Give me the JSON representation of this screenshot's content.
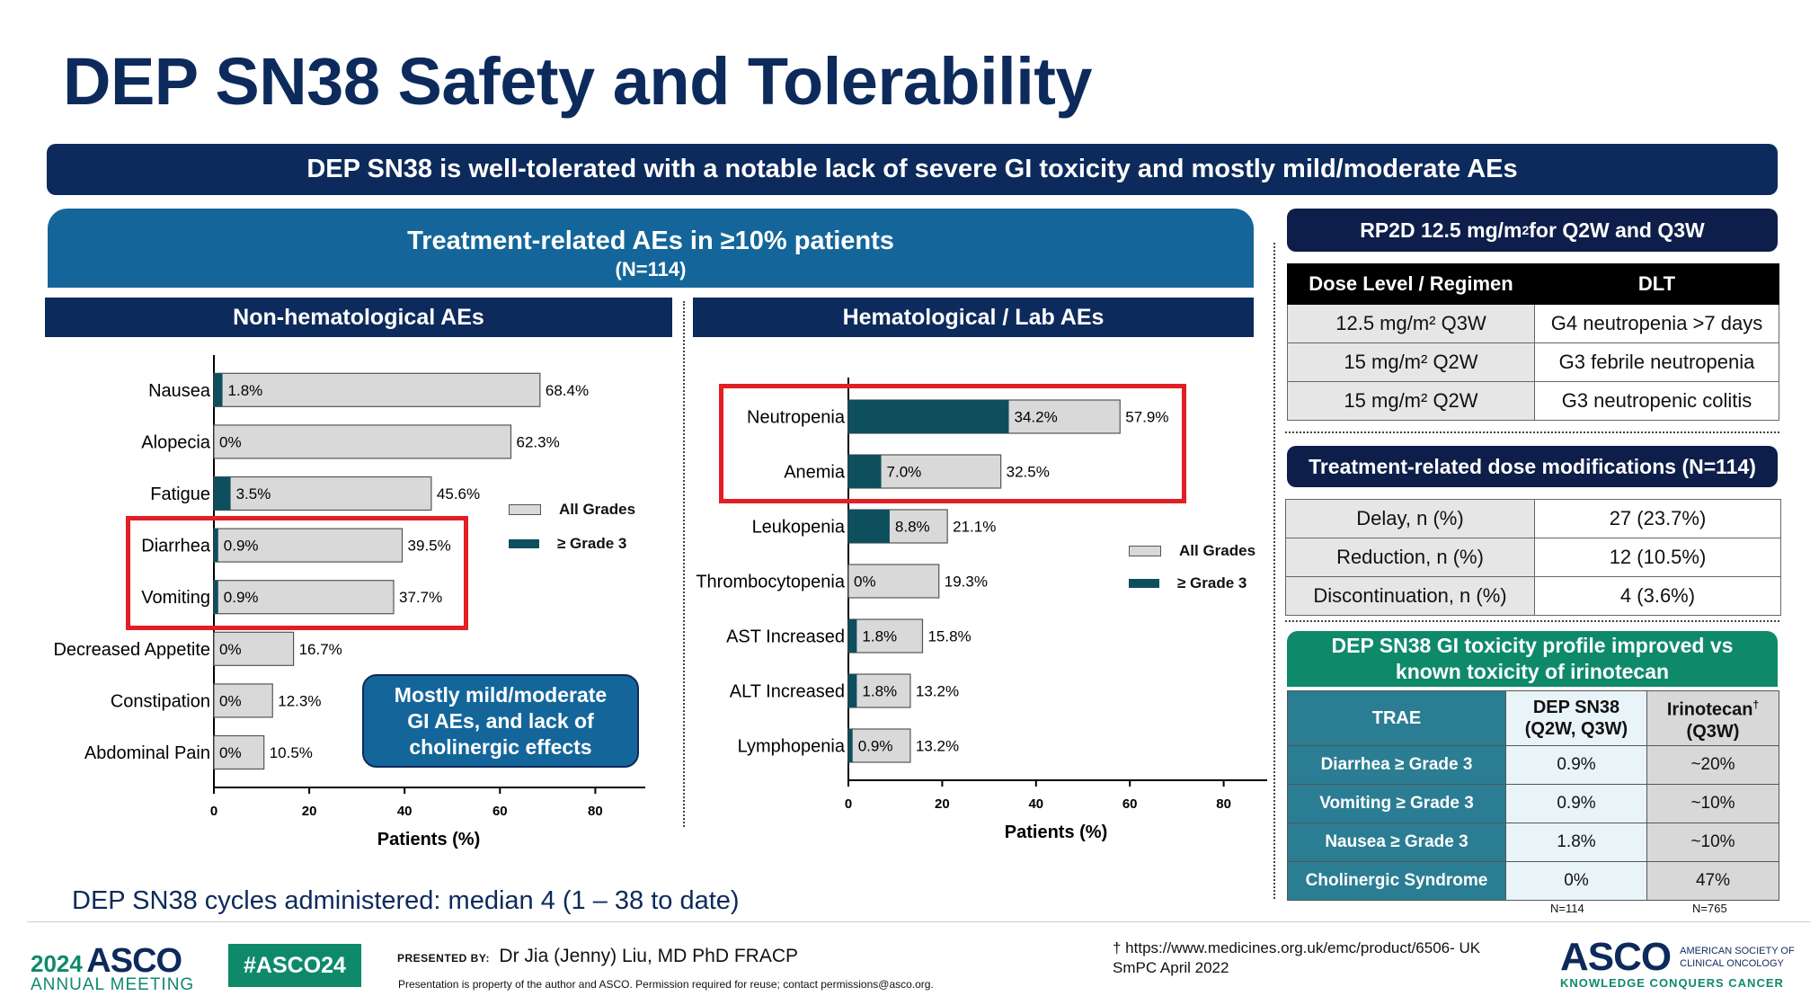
{
  "title": "DEP SN38 Safety and Tolerability",
  "banner": "DEP SN38 is well-tolerated with a notable lack of severe GI toxicity and mostly mild/moderate AEs",
  "trae_header": {
    "line1": "Treatment-related AEs in ≥10% patients",
    "line2": "(N=114)"
  },
  "legend": {
    "all": "All Grades",
    "g3": "≥ Grade 3"
  },
  "colors": {
    "navy": "#0d2a5c",
    "all_grades": "#d9d9d9",
    "grade3": "#0e4f5e",
    "red": "#e31e24"
  },
  "callout": [
    "Mostly mild/moderate",
    "GI AEs, and lack of",
    "cholinergic effects"
  ],
  "chart_data": [
    {
      "type": "bar",
      "orientation": "horizontal",
      "title": "Non-hematological AEs",
      "xlabel": "Patients (%)",
      "xlim": [
        0,
        90
      ],
      "xticks": [
        0,
        20,
        40,
        60,
        80
      ],
      "categories": [
        "Nausea",
        "Alopecia",
        "Fatigue",
        "Diarrhea",
        "Vomiting",
        "Decreased Appetite",
        "Constipation",
        "Abdominal Pain"
      ],
      "series": [
        {
          "name": "All Grades",
          "values": [
            68.4,
            62.3,
            45.6,
            39.5,
            37.7,
            16.7,
            12.3,
            10.5
          ],
          "labels": [
            "68.4%",
            "62.3%",
            "45.6%",
            "39.5%",
            "37.7%",
            "16.7%",
            "12.3%",
            "10.5%"
          ]
        },
        {
          "name": "≥ Grade 3",
          "values": [
            1.8,
            0,
            3.5,
            0.9,
            0.9,
            0,
            0,
            0
          ],
          "labels": [
            "1.8%",
            "0%",
            "3.5%",
            "0.9%",
            "0.9%",
            "0%",
            "0%",
            "0%"
          ]
        }
      ],
      "highlighted": [
        "Diarrhea",
        "Vomiting"
      ]
    },
    {
      "type": "bar",
      "orientation": "horizontal",
      "title": "Hematological / Lab AEs",
      "xlabel": "Patients (%)",
      "xlim": [
        0,
        90
      ],
      "xticks": [
        0,
        20,
        40,
        60,
        80
      ],
      "categories": [
        "Neutropenia",
        "Anemia",
        "Leukopenia",
        "Thrombocytopenia",
        "AST Increased",
        "ALT Increased",
        "Lymphopenia"
      ],
      "series": [
        {
          "name": "All Grades",
          "values": [
            57.9,
            32.5,
            21.1,
            19.3,
            15.8,
            13.2,
            13.2
          ],
          "labels": [
            "57.9%",
            "32.5%",
            "21.1%",
            "19.3%",
            "15.8%",
            "13.2%",
            "13.2%"
          ]
        },
        {
          "name": "≥ Grade 3",
          "values": [
            34.2,
            7.0,
            8.8,
            0,
            1.8,
            1.8,
            0.9
          ],
          "labels": [
            "34.2%",
            "7.0%",
            "8.8%",
            "0%",
            "1.8%",
            "1.8%",
            "0.9%"
          ]
        }
      ],
      "highlighted": [
        "Neutropenia",
        "Anemia"
      ]
    }
  ],
  "rp2d": {
    "prefix": "RP2D 12.5 mg/m",
    "sup": "2",
    "suffix": " for Q2W and Q3W"
  },
  "dlt_table": {
    "headers": [
      "Dose Level / Regimen",
      "DLT"
    ],
    "rows": [
      {
        "dose": "12.5 mg/m² Q3W",
        "dlt": "G4 neutropenia >7 days"
      },
      {
        "dose": "15 mg/m² Q2W",
        "dlt": "G3 febrile neutropenia"
      },
      {
        "dose": "15 mg/m² Q2W",
        "dlt": "G3 neutropenic colitis"
      }
    ]
  },
  "mods_title": "Treatment-related dose modifications (N=114)",
  "mods_table": [
    {
      "label": "Delay, n (%)",
      "value": "27 (23.7%)"
    },
    {
      "label": "Reduction, n (%)",
      "value": "12 (10.5%)"
    },
    {
      "label": "Discontinuation, n (%)",
      "value": "4 (3.6%)"
    }
  ],
  "gi_box": [
    "DEP SN38 GI toxicity profile improved vs",
    "known toxicity of irinotecan"
  ],
  "tox_table": {
    "h_trae": "TRAE",
    "h_dep": [
      "DEP SN38",
      "(Q2W, Q3W)"
    ],
    "h_iri": [
      "Irinotecan",
      "(Q3W)"
    ],
    "h_iri_sup": "†",
    "rows": [
      {
        "label": "Diarrhea ≥ Grade 3",
        "dep": "0.9%",
        "iri": "~20%"
      },
      {
        "label": "Vomiting ≥ Grade 3",
        "dep": "0.9%",
        "iri": "~10%"
      },
      {
        "label": "Nausea ≥ Grade 3",
        "dep": "1.8%",
        "iri": "~10%"
      },
      {
        "label": "Cholinergic Syndrome",
        "dep": "0%",
        "iri": "47%"
      }
    ],
    "n_dep": "N=114",
    "n_iri": "N=765"
  },
  "cycles": "DEP SN38 cycles administered: median 4 (1 – 38 to date)",
  "footer": {
    "year": "2024",
    "asco": "ASCO",
    "annual": "ANNUAL MEETING",
    "hashtag": "#ASCO24",
    "presented_by": "PRESENTED BY:",
    "presenter": "Dr Jia (Jenny) Liu, MD PhD FRACP",
    "property": "Presentation is property of the author and ASCO. Permission required for reuse; contact permissions@asco.org.",
    "ref1": "† https://www.medicines.org.uk/emc/product/6506- UK",
    "ref2": "SmPC April 2022",
    "logo": "ASCO",
    "society1": "AMERICAN SOCIETY OF",
    "society2": "CLINICAL ONCOLOGY",
    "tagline": "KNOWLEDGE CONQUERS CANCER"
  }
}
